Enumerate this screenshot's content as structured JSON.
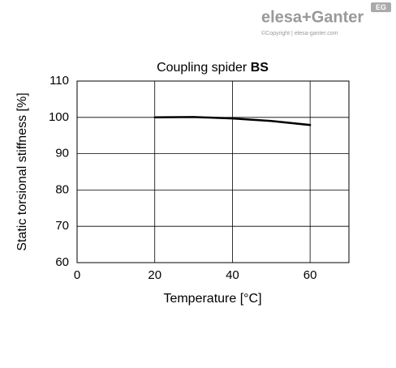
{
  "logo": {
    "brand": "elesa+Ganter",
    "copyright": "©Copyright | elesa-ganter.com",
    "badge": "EG"
  },
  "chart_data": {
    "type": "line",
    "title": "Coupling spider",
    "title_emphasis": "BS",
    "x_label": "Temperature [°C]",
    "y_label": "Static torsional stiffness [%]",
    "x": [
      20,
      30,
      40,
      50,
      60
    ],
    "values": [
      100,
      100.1,
      99.7,
      99,
      97.9
    ],
    "color": "#000000",
    "xlim": [
      0,
      70
    ],
    "xticks": [
      0,
      20,
      40,
      60
    ],
    "ylim": [
      60,
      110
    ],
    "yticks": [
      60,
      70,
      80,
      90,
      100,
      110
    ],
    "grid": true
  }
}
